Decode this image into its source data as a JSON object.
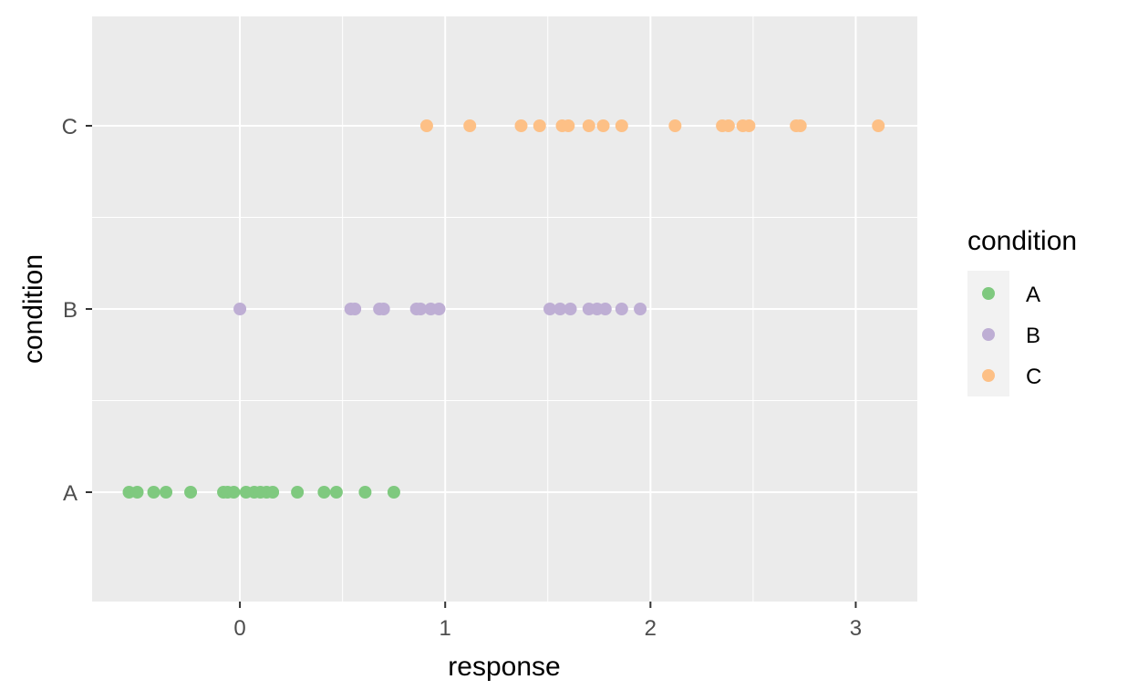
{
  "chart_data": {
    "type": "scatter",
    "xlabel": "response",
    "ylabel": "condition",
    "categories": [
      "A",
      "B",
      "C"
    ],
    "x_ticks": [
      0,
      1,
      2,
      3
    ],
    "xlim": [
      -0.72,
      3.3
    ],
    "grid": true,
    "panel_background": "#ebebeb",
    "legend": {
      "title": "condition",
      "placement": "right",
      "entries": [
        "A",
        "B",
        "C"
      ]
    },
    "series": [
      {
        "name": "A",
        "color": "#7fc97f",
        "y": "A",
        "values": [
          -0.54,
          -0.5,
          -0.42,
          -0.36,
          -0.24,
          -0.08,
          -0.06,
          -0.03,
          0.03,
          0.07,
          0.1,
          0.13,
          0.16,
          0.28,
          0.41,
          0.47,
          0.61,
          0.75
        ]
      },
      {
        "name": "B",
        "color": "#beaed4",
        "y": "B",
        "values": [
          0.0,
          0.54,
          0.56,
          0.68,
          0.7,
          0.86,
          0.88,
          0.93,
          0.97,
          1.51,
          1.56,
          1.61,
          1.7,
          1.74,
          1.78,
          1.86,
          1.95
        ]
      },
      {
        "name": "C",
        "color": "#fdc086",
        "y": "C",
        "values": [
          0.91,
          1.12,
          1.37,
          1.46,
          1.57,
          1.6,
          1.7,
          1.77,
          1.86,
          2.12,
          2.35,
          2.38,
          2.45,
          2.48,
          2.71,
          2.73,
          3.11
        ]
      }
    ]
  }
}
